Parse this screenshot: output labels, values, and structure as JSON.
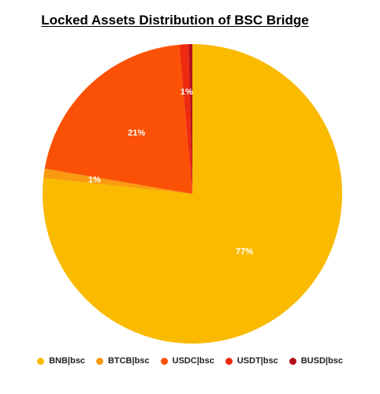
{
  "chart_data": {
    "type": "pie",
    "title": "Locked Assets Distribution of BSC Bridge",
    "legend_position": "bottom",
    "slices": [
      {
        "name": "BNB|bsc",
        "value": 77,
        "label": "77%",
        "color": "#F9BA00"
      },
      {
        "name": "BTCB|bsc",
        "value": 1,
        "label": "1%",
        "color": "#F99A10"
      },
      {
        "name": "USDC|bsc",
        "value": 21,
        "label": "21%",
        "color": "#FB5106"
      },
      {
        "name": "USDT|bsc",
        "value": 1,
        "label": "1%",
        "color": "#EE2A10"
      },
      {
        "name": "BUSD|bsc",
        "value": 0.4,
        "label": "",
        "color": "#B5101B"
      }
    ]
  }
}
